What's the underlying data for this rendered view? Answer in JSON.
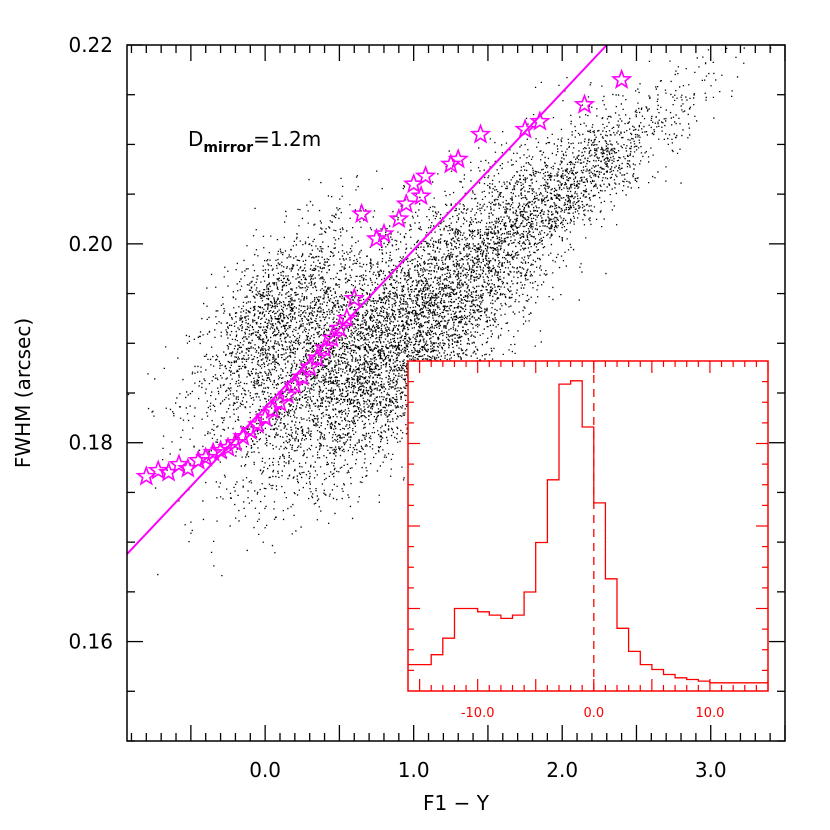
{
  "chart_data": [
    {
      "type": "scatter",
      "xlabel": "F1 − Y",
      "ylabel": "FWHM (arcsec)",
      "xlim": [
        -0.93,
        3.5
      ],
      "ylim": [
        0.15,
        0.22
      ],
      "x_ticks": [
        "0.0",
        "1.0",
        "2.0",
        "3.0"
      ],
      "y_ticks": [
        "0.16",
        "0.18",
        "0.20",
        "0.22"
      ],
      "annotation": {
        "main": "D",
        "sub": "mirror",
        "rest": "=1.2m"
      },
      "colors": {
        "data": "#000000",
        "stars": "#ff00ff",
        "fit": "#ff00ff"
      },
      "fit_line": {
        "x": [
          -0.93,
          2.3
        ],
        "y": [
          0.1688,
          0.22
        ]
      },
      "dense_cloud": {
        "note": "black dot cloud; density follows the listed (x, y) means",
        "clusters": [
          {
            "x": 0.05,
            "y": 0.192,
            "sx": 0.28,
            "sy": 0.004,
            "weight": 0.18
          },
          {
            "x": 0.6,
            "y": 0.1895,
            "sx": 0.4,
            "sy": 0.0045,
            "weight": 0.32
          },
          {
            "x": 0.9,
            "y": 0.186,
            "sx": 0.4,
            "sy": 0.0035,
            "weight": 0.14
          },
          {
            "x": 1.3,
            "y": 0.196,
            "sx": 0.35,
            "sy": 0.005,
            "weight": 0.18
          },
          {
            "x": 1.9,
            "y": 0.2045,
            "sx": 0.35,
            "sy": 0.003,
            "weight": 0.14
          },
          {
            "x": 2.45,
            "y": 0.2095,
            "sx": 0.3,
            "sy": 0.002,
            "weight": 0.04
          }
        ]
      },
      "star_points": [
        [
          -0.8,
          0.1766
        ],
        [
          -0.72,
          0.1772
        ],
        [
          -0.65,
          0.177
        ],
        [
          -0.58,
          0.1778
        ],
        [
          -0.52,
          0.1774
        ],
        [
          -0.45,
          0.1782
        ],
        [
          -0.4,
          0.1785
        ],
        [
          -0.35,
          0.179
        ],
        [
          -0.3,
          0.1792
        ],
        [
          -0.25,
          0.1795
        ],
        [
          -0.2,
          0.18
        ],
        [
          -0.15,
          0.1806
        ],
        [
          -0.1,
          0.1812
        ],
        [
          -0.05,
          0.1818
        ],
        [
          0.0,
          0.1825
        ],
        [
          0.05,
          0.1833
        ],
        [
          0.1,
          0.184
        ],
        [
          0.15,
          0.1848
        ],
        [
          0.2,
          0.1858
        ],
        [
          0.25,
          0.1866
        ],
        [
          0.3,
          0.1876
        ],
        [
          0.35,
          0.1885
        ],
        [
          0.4,
          0.1895
        ],
        [
          0.45,
          0.1905
        ],
        [
          0.5,
          0.1915
        ],
        [
          0.55,
          0.1925
        ],
        [
          0.6,
          0.1945
        ],
        [
          0.65,
          0.203
        ],
        [
          0.75,
          0.2005
        ],
        [
          0.8,
          0.201
        ],
        [
          0.9,
          0.2025
        ],
        [
          0.95,
          0.204
        ],
        [
          1.0,
          0.206
        ],
        [
          1.05,
          0.2048
        ],
        [
          1.08,
          0.2068
        ],
        [
          1.25,
          0.208
        ],
        [
          1.3,
          0.2085
        ],
        [
          1.45,
          0.211
        ],
        [
          1.75,
          0.2115
        ],
        [
          1.85,
          0.2123
        ],
        [
          2.15,
          0.214
        ],
        [
          2.4,
          0.2165
        ]
      ]
    },
    {
      "type": "histogram",
      "xlim": [
        -16,
        15
      ],
      "ylim": [
        0,
        1.0
      ],
      "x_ticks": [
        "-10.0",
        "0.0",
        "10.0"
      ],
      "dashed_line_x": 0,
      "color": "#ff0000",
      "bins_start": -15,
      "bin_width": 1,
      "values": [
        0.08,
        0.11,
        0.16,
        0.25,
        0.25,
        0.24,
        0.23,
        0.22,
        0.23,
        0.3,
        0.45,
        0.64,
        0.93,
        0.94,
        0.8,
        0.57,
        0.34,
        0.19,
        0.12,
        0.08,
        0.065,
        0.05,
        0.04,
        0.035,
        0.03,
        0.025,
        0.025,
        0.025,
        0.025,
        0.025
      ]
    }
  ]
}
